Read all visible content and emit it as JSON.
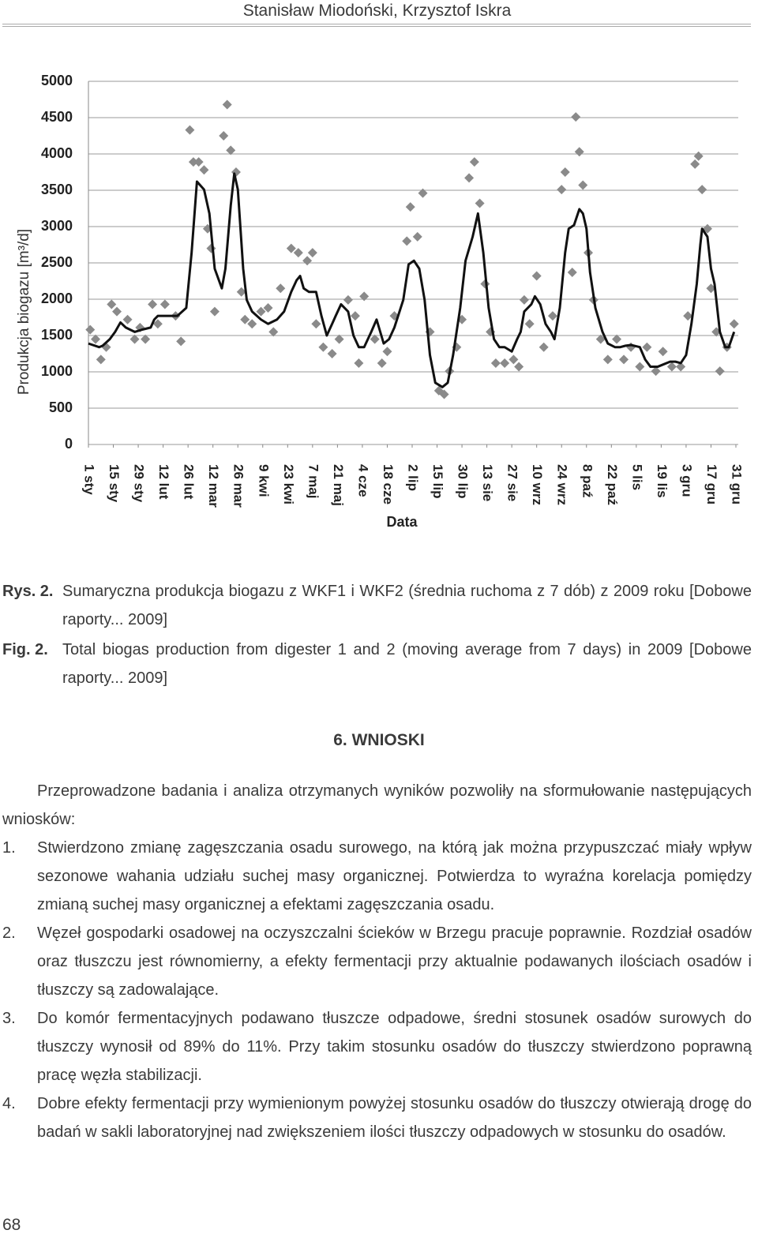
{
  "header": "Stanisław Miodoński, Krzysztof Iskra",
  "chart_data": {
    "type": "line",
    "y_label": "Produkcja biogazu [m³/d]",
    "x_label": "Data",
    "xlim": [
      0,
      364
    ],
    "ylim": [
      0,
      5000
    ],
    "yticks": [
      0,
      500,
      1000,
      1500,
      2000,
      2500,
      3000,
      3500,
      4000,
      4500,
      5000
    ],
    "xticks": [
      {
        "value": 0,
        "label": "1 sty"
      },
      {
        "value": 14,
        "label": "15 sty"
      },
      {
        "value": 28,
        "label": "29 sty"
      },
      {
        "value": 42,
        "label": "12 lut"
      },
      {
        "value": 56,
        "label": "26 lut"
      },
      {
        "value": 70,
        "label": "12 mar"
      },
      {
        "value": 84,
        "label": "26 mar"
      },
      {
        "value": 98,
        "label": "9 kwi"
      },
      {
        "value": 112,
        "label": "23 kwi"
      },
      {
        "value": 126,
        "label": "7 maj"
      },
      {
        "value": 140,
        "label": "21 maj"
      },
      {
        "value": 154,
        "label": "4 cze"
      },
      {
        "value": 168,
        "label": "18 cze"
      },
      {
        "value": 182,
        "label": "2 lip"
      },
      {
        "value": 196,
        "label": "15 lip"
      },
      {
        "value": 210,
        "label": "30 lip"
      },
      {
        "value": 224,
        "label": "13 sie"
      },
      {
        "value": 238,
        "label": "27 sie"
      },
      {
        "value": 252,
        "label": "10 wrz"
      },
      {
        "value": 266,
        "label": "24 wrz"
      },
      {
        "value": 280,
        "label": "8 paź"
      },
      {
        "value": 294,
        "label": "22 paź"
      },
      {
        "value": 308,
        "label": "5 lis"
      },
      {
        "value": 322,
        "label": "19 lis"
      },
      {
        "value": 336,
        "label": "3 gru"
      },
      {
        "value": 350,
        "label": "17 gru"
      },
      {
        "value": 364,
        "label": "31 gru"
      }
    ],
    "grid": true,
    "series": [
      {
        "type": "scatter",
        "marker": "diamond",
        "color": "#8a8a8a",
        "x": [
          1,
          4,
          7,
          10,
          13,
          16,
          22,
          26,
          29,
          32,
          36,
          39,
          43,
          49,
          52,
          57,
          59,
          62,
          65,
          67,
          69,
          71,
          76,
          78,
          80,
          83,
          86,
          88,
          92,
          97,
          101,
          104,
          108,
          114,
          118,
          123,
          126,
          128,
          132,
          137,
          141,
          146,
          150,
          152,
          155,
          161,
          165,
          168,
          172,
          179,
          181,
          185,
          188,
          192,
          197,
          200,
          203,
          207,
          210,
          214,
          217,
          220,
          223,
          226,
          229,
          234,
          239,
          242,
          245,
          248,
          252,
          256,
          261,
          266,
          268,
          272,
          274,
          276,
          278,
          281,
          284,
          288,
          292,
          297,
          301,
          305,
          310,
          314,
          319,
          323,
          328,
          333,
          337,
          341,
          343,
          345,
          348,
          350,
          353,
          355,
          359,
          363
        ],
        "values": [
          1580,
          1450,
          1170,
          1340,
          1930,
          1830,
          1720,
          1450,
          1610,
          1450,
          1930,
          1660,
          1930,
          1770,
          1420,
          4330,
          3890,
          3890,
          3780,
          2970,
          2700,
          1830,
          4250,
          4680,
          4050,
          3750,
          2100,
          1720,
          1660,
          1830,
          1880,
          1550,
          2150,
          2700,
          2640,
          2530,
          2640,
          1660,
          1340,
          1250,
          1450,
          1990,
          1770,
          1120,
          2040,
          1450,
          1120,
          1280,
          1770,
          2800,
          3270,
          2860,
          3460,
          1550,
          740,
          690,
          1010,
          1340,
          1720,
          3670,
          3890,
          3320,
          2210,
          1550,
          1120,
          1120,
          1170,
          1070,
          1990,
          1660,
          2320,
          1340,
          1770,
          3510,
          3750,
          2370,
          4510,
          4030,
          3570,
          2640,
          1990,
          1450,
          1170,
          1450,
          1170,
          1340,
          1070,
          1340,
          1010,
          1280,
          1070,
          1070,
          1770,
          3860,
          3970,
          3510,
          2970,
          2150,
          1550,
          1010,
          1340,
          1660
        ]
      },
      {
        "type": "line",
        "color": "#111111",
        "x": [
          0,
          6,
          8,
          12,
          15,
          18,
          21,
          26,
          30,
          35,
          37,
          39,
          43,
          50,
          55,
          58,
          61,
          65,
          68,
          71,
          75,
          77,
          80,
          82,
          84,
          87,
          89,
          92,
          97,
          101,
          106,
          110,
          114,
          117,
          119,
          121,
          124,
          128,
          131,
          134,
          137,
          139,
          142,
          146,
          149,
          152,
          155,
          159,
          162,
          166,
          169,
          172,
          177,
          180,
          183,
          186,
          189,
          192,
          195,
          199,
          202,
          205,
          209,
          212,
          216,
          219,
          222,
          225,
          228,
          231,
          234,
          238,
          241,
          243,
          245,
          249,
          251,
          254,
          257,
          260,
          262,
          265,
          268,
          270,
          273,
          276,
          278,
          280,
          282,
          285,
          289,
          292,
          296,
          299,
          302,
          305,
          310,
          313,
          316,
          320,
          323,
          327,
          330,
          333,
          336,
          339,
          342,
          344,
          345,
          348,
          350,
          352,
          355,
          358,
          360,
          363
        ],
        "values": [
          1390,
          1340,
          1360,
          1450,
          1550,
          1680,
          1610,
          1550,
          1580,
          1610,
          1720,
          1770,
          1770,
          1770,
          1880,
          2640,
          3620,
          3510,
          3180,
          2420,
          2150,
          2420,
          3290,
          3730,
          3510,
          2420,
          1990,
          1830,
          1720,
          1660,
          1720,
          1830,
          2100,
          2260,
          2320,
          2150,
          2100,
          2100,
          1770,
          1500,
          1660,
          1770,
          1930,
          1830,
          1500,
          1340,
          1340,
          1550,
          1720,
          1390,
          1450,
          1610,
          1990,
          2480,
          2530,
          2420,
          1990,
          1230,
          850,
          790,
          850,
          1230,
          1880,
          2530,
          2860,
          3180,
          2640,
          1880,
          1450,
          1340,
          1340,
          1280,
          1450,
          1550,
          1830,
          1930,
          2040,
          1930,
          1660,
          1550,
          1450,
          1880,
          2640,
          2970,
          3020,
          3240,
          3180,
          2970,
          2370,
          1880,
          1550,
          1390,
          1340,
          1340,
          1360,
          1370,
          1340,
          1170,
          1070,
          1070,
          1100,
          1140,
          1140,
          1120,
          1230,
          1660,
          2210,
          2750,
          2970,
          2860,
          2420,
          2210,
          1550,
          1340,
          1340,
          1550
        ]
      }
    ]
  },
  "caption": [
    {
      "label": "Rys. 2.",
      "text": "Sumaryczna produkcja biogazu z WKF1 i WKF2 (średnia ruchoma z 7 dób) z 2009 roku [Dobowe raporty... 2009]"
    },
    {
      "label": "Fig. 2.",
      "text": "Total biogas production from digester 1 and 2 (moving average from 7 days) in 2009 [Dobowe raporty... 2009]"
    }
  ],
  "section": {
    "title": "6. WNIOSKI",
    "intro": "Przeprowadzone badania i analiza otrzymanych wyników pozwoliły na sformułowanie następujących wniosków:",
    "items": [
      {
        "num": "1.",
        "text": "Stwierdzono zmianę zagęszczania osadu surowego, na którą jak można przypuszczać miały wpływ sezonowe wahania udziału suchej masy organicznej. Potwierdza to wyraźna korelacja pomiędzy zmianą suchej masy organicznej a efektami zagęszczania osadu."
      },
      {
        "num": "2.",
        "text": "Węzeł gospodarki osadowej na oczyszczalni ścieków w Brzegu pracuje poprawnie. Rozdział osadów oraz tłuszczu jest równomierny, a efekty fermentacji przy aktualnie podawanych ilościach osadów i tłuszczy są zadowalające."
      },
      {
        "num": "3.",
        "text": "Do komór fermentacyjnych podawano tłuszcze odpadowe, średni stosunek osadów surowych do tłuszczy wynosił od 89% do 11%. Przy takim stosunku osadów do tłuszczy stwierdzono poprawną pracę węzła stabilizacji."
      },
      {
        "num": "4.",
        "text": "Dobre efekty fermentacji przy wymienionym powyżej stosunku osadów do tłuszczy otwierają drogę do badań w sakli laboratoryjnej nad zwiększeniem ilości tłuszczy odpadowych w stosunku do osadów."
      }
    ]
  },
  "page_number": "68"
}
